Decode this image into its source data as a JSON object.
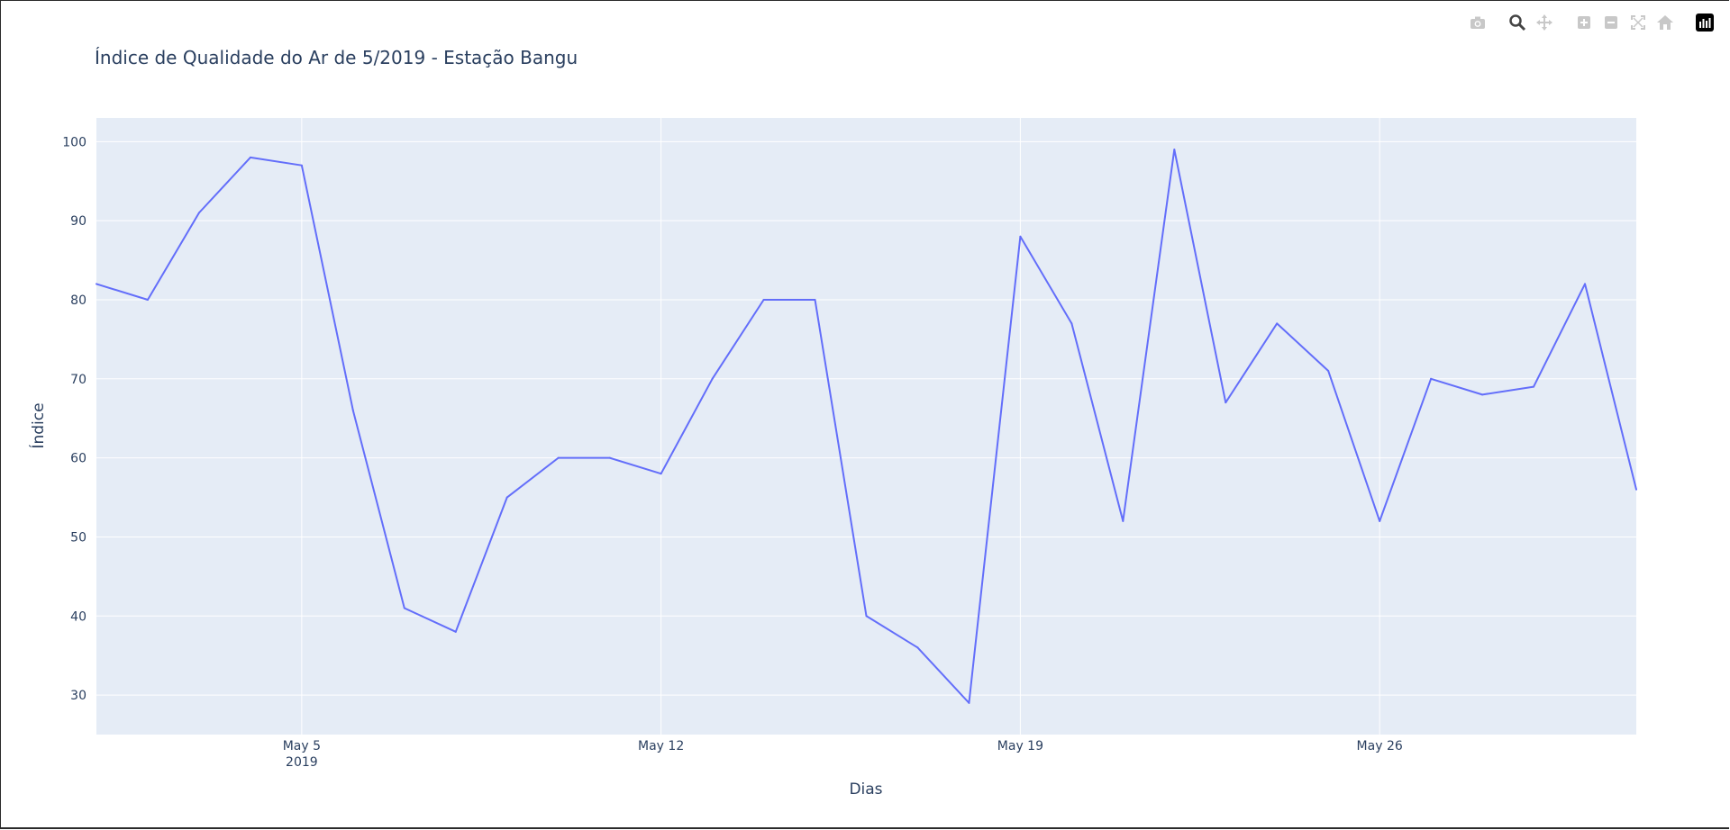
{
  "toolbar": {
    "icons": [
      "camera-icon",
      "zoom-icon",
      "pan-icon",
      "zoom-in-icon",
      "zoom-out-icon",
      "autoscale-icon",
      "home-icon",
      "plotly-logo-icon"
    ]
  },
  "colors": {
    "plot_background": "#e5ecf6",
    "grid": "#ffffff",
    "line": "#636efa",
    "text": "#2a3f5f"
  },
  "chart_data": {
    "type": "line",
    "title": "Índice de Qualidade do Ar de 5/2019 - Estação Bangu",
    "xlabel": "Dias",
    "ylabel": "Índice",
    "x": [
      "2019-05-01",
      "2019-05-02",
      "2019-05-03",
      "2019-05-04",
      "2019-05-05",
      "2019-05-06",
      "2019-05-07",
      "2019-05-08",
      "2019-05-09",
      "2019-05-10",
      "2019-05-11",
      "2019-05-12",
      "2019-05-13",
      "2019-05-14",
      "2019-05-15",
      "2019-05-16",
      "2019-05-17",
      "2019-05-18",
      "2019-05-19",
      "2019-05-20",
      "2019-05-21",
      "2019-05-22",
      "2019-05-23",
      "2019-05-24",
      "2019-05-25",
      "2019-05-26",
      "2019-05-27",
      "2019-05-28",
      "2019-05-29",
      "2019-05-30",
      "2019-05-31"
    ],
    "series": [
      {
        "values": [
          82,
          80,
          91,
          98,
          97,
          66,
          41,
          38,
          55,
          60,
          60,
          58,
          70,
          80,
          80,
          40,
          36,
          29,
          88,
          77,
          52,
          99,
          67,
          77,
          71,
          52,
          70,
          68,
          69,
          82,
          56
        ]
      }
    ],
    "xlim": [
      "2019-05-01",
      "2019-05-31"
    ],
    "ylim": [
      25,
      103
    ],
    "yticks": [
      30,
      40,
      50,
      60,
      70,
      80,
      90,
      100
    ],
    "xticks": [
      {
        "date": "2019-05-05",
        "label": "May 5",
        "sublabel": "2019"
      },
      {
        "date": "2019-05-12",
        "label": "May 12",
        "sublabel": ""
      },
      {
        "date": "2019-05-19",
        "label": "May 19",
        "sublabel": ""
      },
      {
        "date": "2019-05-26",
        "label": "May 26",
        "sublabel": ""
      }
    ],
    "grid": true
  }
}
